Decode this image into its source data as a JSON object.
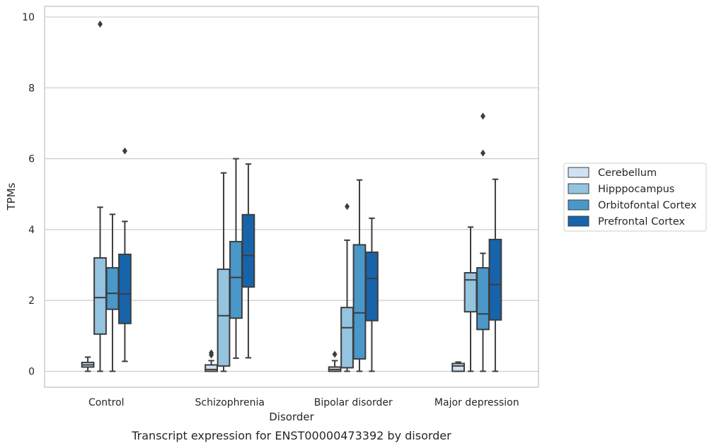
{
  "chart_data": {
    "type": "box",
    "caption": "Transcript expression for ENST00000473392 by disorder",
    "xlabel": "Disorder",
    "ylabel": "TPMs",
    "ylim": [
      -0.45,
      10.3
    ],
    "yticks": [
      "0",
      "2",
      "4",
      "6",
      "8",
      "10"
    ],
    "grid": "horizontal",
    "legend_position": "right",
    "categories": [
      "Control",
      "Schizophrenia",
      "Bipolar disorder",
      "Major depression"
    ],
    "series": [
      {
        "name": "Cerebellum",
        "color": "#d0e1f2",
        "boxes": [
          {
            "whislo": 0.0,
            "q1": 0.12,
            "med": 0.18,
            "q3": 0.25,
            "whishi": 0.4,
            "fliers": []
          },
          {
            "whislo": 0.0,
            "q1": 0.0,
            "med": 0.05,
            "q3": 0.18,
            "whishi": 0.3,
            "fliers": [
              0.46,
              0.52
            ]
          },
          {
            "whislo": 0.0,
            "q1": 0.0,
            "med": 0.05,
            "q3": 0.12,
            "whishi": 0.3,
            "fliers": [
              0.48
            ]
          },
          {
            "whislo": 0.0,
            "q1": 0.0,
            "med": 0.15,
            "q3": 0.22,
            "whishi": 0.26,
            "fliers": []
          }
        ]
      },
      {
        "name": "Hipppocampus",
        "color": "#94c4df",
        "boxes": [
          {
            "whislo": 0.0,
            "q1": 1.05,
            "med": 2.08,
            "q3": 3.2,
            "whishi": 4.63,
            "fliers": [
              9.8
            ]
          },
          {
            "whislo": 0.0,
            "q1": 0.15,
            "med": 1.57,
            "q3": 2.88,
            "whishi": 5.6,
            "fliers": []
          },
          {
            "whislo": 0.0,
            "q1": 0.1,
            "med": 1.23,
            "q3": 1.8,
            "whishi": 3.7,
            "fliers": [
              4.65
            ]
          },
          {
            "whislo": 0.0,
            "q1": 1.68,
            "med": 2.58,
            "q3": 2.78,
            "whishi": 4.07,
            "fliers": []
          }
        ]
      },
      {
        "name": "Orbitofontal Cortex",
        "color": "#4a98c9",
        "boxes": [
          {
            "whislo": 0.0,
            "q1": 1.75,
            "med": 2.2,
            "q3": 2.92,
            "whishi": 4.43,
            "fliers": []
          },
          {
            "whislo": 0.37,
            "q1": 1.5,
            "med": 2.65,
            "q3": 3.66,
            "whishi": 6.0,
            "fliers": []
          },
          {
            "whislo": 0.0,
            "q1": 0.35,
            "med": 1.65,
            "q3": 3.57,
            "whishi": 5.4,
            "fliers": []
          },
          {
            "whislo": 0.0,
            "q1": 1.18,
            "med": 1.62,
            "q3": 2.92,
            "whishi": 3.33,
            "fliers": [
              6.16,
              7.2
            ]
          }
        ]
      },
      {
        "name": "Prefrontal Cortex",
        "color": "#1764ab",
        "boxes": [
          {
            "whislo": 0.28,
            "q1": 1.35,
            "med": 2.18,
            "q3": 3.3,
            "whishi": 4.23,
            "fliers": [
              6.22
            ]
          },
          {
            "whislo": 0.38,
            "q1": 2.38,
            "med": 3.27,
            "q3": 4.42,
            "whishi": 5.85,
            "fliers": []
          },
          {
            "whislo": 0.0,
            "q1": 1.43,
            "med": 2.62,
            "q3": 3.36,
            "whishi": 4.32,
            "fliers": []
          },
          {
            "whislo": 0.0,
            "q1": 1.45,
            "med": 2.45,
            "q3": 3.72,
            "whishi": 5.42,
            "fliers": []
          }
        ]
      }
    ]
  }
}
